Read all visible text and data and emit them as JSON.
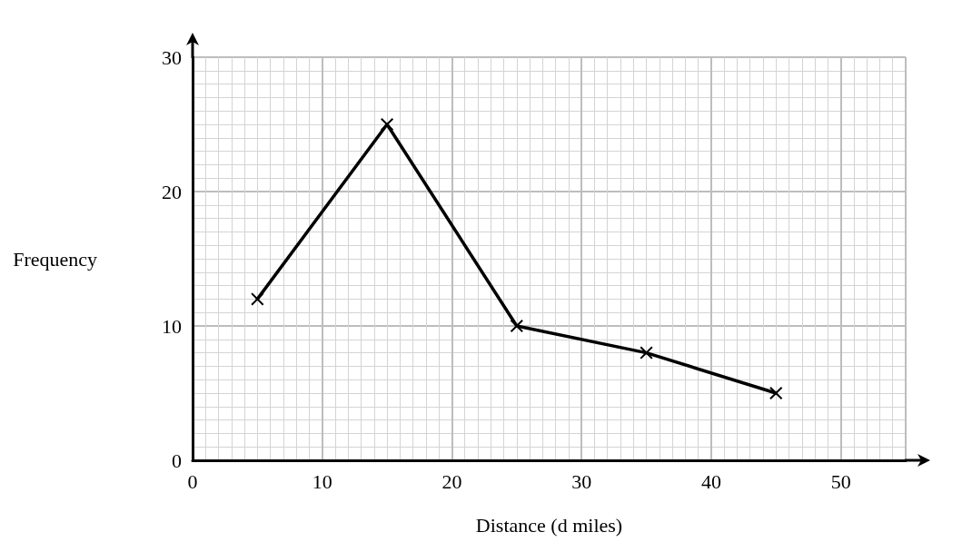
{
  "chart_data": {
    "type": "line",
    "xlabel": "Distance ($_{}$d miles)",
    "ylabel": "Frequency",
    "x": [
      5,
      15,
      25,
      35,
      45
    ],
    "series": [
      {
        "color": "#000000",
        "values": [
          12,
          25,
          10,
          8,
          5
        ]
      }
    ],
    "xlim": [
      0,
      55
    ],
    "xticks": [
      0,
      10,
      20,
      30,
      40,
      50
    ],
    "ylim": [
      0,
      30
    ],
    "yticks": [
      0,
      10,
      20,
      30
    ],
    "grid": true,
    "marker": "cross",
    "line_style": "solid"
  }
}
